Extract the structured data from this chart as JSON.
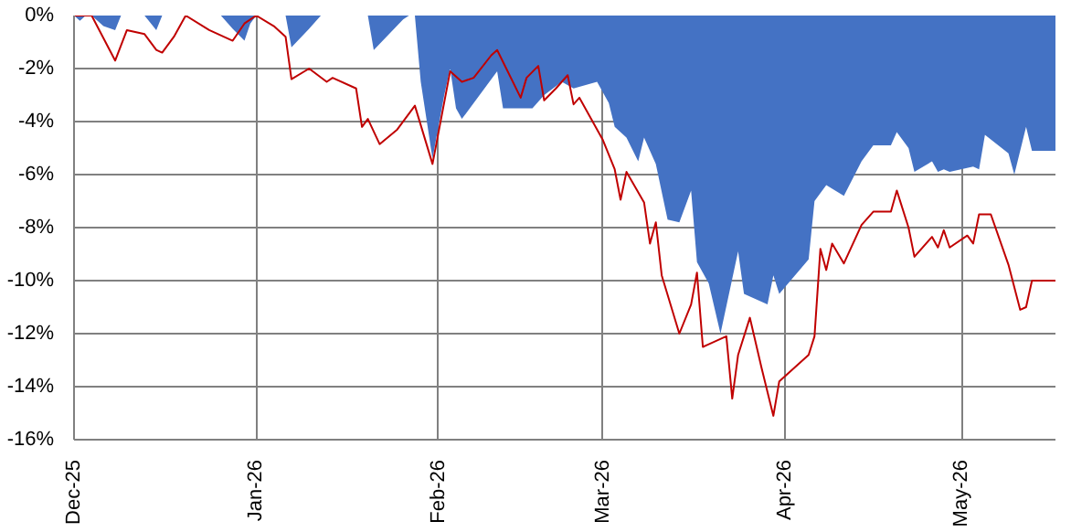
{
  "chart_data": {
    "type": "area",
    "xlim": [
      "2025-12-01",
      "2026-05-17"
    ],
    "ylim": [
      -16,
      0
    ],
    "xticks": [
      {
        "value": "2025-12-01",
        "label": "Dec-25"
      },
      {
        "value": "2026-01-01",
        "label": "Jan-26"
      },
      {
        "value": "2026-02-01",
        "label": "Feb-26"
      },
      {
        "value": "2026-03-01",
        "label": "Mar-26"
      },
      {
        "value": "2026-04-01",
        "label": "Apr-26"
      },
      {
        "value": "2026-05-01",
        "label": "May-26"
      }
    ],
    "yticks": [
      {
        "value": 0,
        "label": "0%"
      },
      {
        "value": -2,
        "label": "-2%"
      },
      {
        "value": -4,
        "label": "-4%"
      },
      {
        "value": -6,
        "label": "-6%"
      },
      {
        "value": -8,
        "label": "-8%"
      },
      {
        "value": -10,
        "label": "-10%"
      },
      {
        "value": -12,
        "label": "-12%"
      },
      {
        "value": -14,
        "label": "-14%"
      },
      {
        "value": -16,
        "label": "-16%"
      }
    ],
    "grid": true,
    "series": [
      {
        "color": "#4472c4",
        "x": [
          "2025-12-01",
          "2025-12-02",
          "2025-12-03",
          "2025-12-04",
          "2025-12-06",
          "2025-12-08",
          "2025-12-09",
          "2025-12-13",
          "2025-12-15",
          "2025-12-16",
          "2025-12-26",
          "2025-12-28",
          "2025-12-30",
          "2025-12-31",
          "2026-01-01",
          "2026-01-06",
          "2026-01-07",
          "2026-01-10",
          "2026-01-12",
          "2026-01-20",
          "2026-01-21",
          "2026-01-26",
          "2026-01-27",
          "2026-01-28",
          "2026-01-29",
          "2026-01-31",
          "2026-02-02",
          "2026-02-03",
          "2026-02-04",
          "2026-02-05",
          "2026-02-11",
          "2026-02-12",
          "2026-02-17",
          "2026-02-19",
          "2026-02-22",
          "2026-02-24",
          "2026-02-28",
          "2026-03-02",
          "2026-03-03",
          "2026-03-05",
          "2026-03-07",
          "2026-03-08",
          "2026-03-10",
          "2026-03-12",
          "2026-03-14",
          "2026-03-16",
          "2026-03-17",
          "2026-03-19",
          "2026-03-21",
          "2026-03-24",
          "2026-03-25",
          "2026-03-29",
          "2026-03-30",
          "2026-03-31",
          "2026-04-05",
          "2026-04-06",
          "2026-04-08",
          "2026-04-11",
          "2026-04-14",
          "2026-04-16",
          "2026-04-19",
          "2026-04-20",
          "2026-04-22",
          "2026-04-23",
          "2026-04-26",
          "2026-04-27",
          "2026-04-28",
          "2026-04-29",
          "2026-05-03",
          "2026-05-04",
          "2026-05-05",
          "2026-05-09",
          "2026-05-10",
          "2026-05-12",
          "2026-05-13",
          "2026-05-17"
        ],
        "values": [
          0,
          -0.2,
          0,
          0,
          -0.4,
          -0.55,
          0,
          0,
          -0.55,
          0,
          0,
          -0.5,
          -0.95,
          -0.3,
          0,
          0,
          -1.2,
          -0.5,
          0,
          0,
          -1.3,
          -0.15,
          0,
          0,
          -2.5,
          -5.4,
          -3.0,
          -2.0,
          -3.5,
          -3.9,
          -2.1,
          -3.5,
          -3.5,
          -3.0,
          -2.5,
          -2.75,
          -2.5,
          -3.3,
          -4.2,
          -4.6,
          -5.5,
          -4.6,
          -5.6,
          -7.7,
          -7.8,
          -6.6,
          -9.3,
          -10.1,
          -12.0,
          -8.9,
          -10.5,
          -10.9,
          -9.8,
          -10.5,
          -9.2,
          -7.0,
          -6.4,
          -6.8,
          -5.5,
          -4.9,
          -4.9,
          -4.4,
          -5.0,
          -5.9,
          -5.5,
          -5.9,
          -5.8,
          -5.9,
          -5.7,
          -5.8,
          -4.5,
          -5.2,
          -6.0,
          -4.2,
          -5.1,
          -5.1
        ]
      },
      {
        "type": "line",
        "color": "#c00000",
        "x": [
          "2025-12-01",
          "2025-12-04",
          "2025-12-08",
          "2025-12-10",
          "2025-12-13",
          "2025-12-15",
          "2025-12-16",
          "2025-12-18",
          "2025-12-20",
          "2025-12-24",
          "2025-12-28",
          "2025-12-30",
          "2026-01-01",
          "2026-01-04",
          "2026-01-06",
          "2026-01-07",
          "2026-01-10",
          "2026-01-13",
          "2026-01-14",
          "2026-01-18",
          "2026-01-19",
          "2026-01-20",
          "2026-01-22",
          "2026-01-25",
          "2026-01-28",
          "2026-01-31",
          "2026-02-03",
          "2026-02-05",
          "2026-02-07",
          "2026-02-10",
          "2026-02-11",
          "2026-02-15",
          "2026-02-16",
          "2026-02-18",
          "2026-02-19",
          "2026-02-21",
          "2026-02-23",
          "2026-02-24",
          "2026-02-25",
          "2026-03-01",
          "2026-03-03",
          "2026-03-04",
          "2026-03-05",
          "2026-03-08",
          "2026-03-09",
          "2026-03-10",
          "2026-03-11",
          "2026-03-14",
          "2026-03-16",
          "2026-03-17",
          "2026-03-18",
          "2026-03-19",
          "2026-03-22",
          "2026-03-23",
          "2026-03-24",
          "2026-03-26",
          "2026-03-28",
          "2026-03-30",
          "2026-03-31",
          "2026-04-05",
          "2026-04-06",
          "2026-04-07",
          "2026-04-08",
          "2026-04-09",
          "2026-04-11",
          "2026-04-14",
          "2026-04-16",
          "2026-04-19",
          "2026-04-20",
          "2026-04-22",
          "2026-04-23",
          "2026-04-26",
          "2026-04-27",
          "2026-04-28",
          "2026-04-29",
          "2026-05-02",
          "2026-05-03",
          "2026-05-04",
          "2026-05-06",
          "2026-05-09",
          "2026-05-11",
          "2026-05-12",
          "2026-05-13",
          "2026-05-17"
        ],
        "values": [
          0,
          0,
          -1.7,
          -0.55,
          -0.7,
          -1.3,
          -1.4,
          -0.8,
          0,
          -0.55,
          -0.95,
          -0.3,
          0,
          -0.4,
          -0.8,
          -2.4,
          -2.0,
          -2.5,
          -2.35,
          -2.75,
          -4.2,
          -3.9,
          -4.85,
          -4.3,
          -3.4,
          -5.6,
          -2.1,
          -2.5,
          -2.35,
          -1.5,
          -1.3,
          -3.1,
          -2.35,
          -1.9,
          -3.2,
          -2.75,
          -2.25,
          -3.35,
          -3.1,
          -4.7,
          -5.8,
          -6.95,
          -5.9,
          -7.05,
          -8.6,
          -7.8,
          -9.8,
          -12.0,
          -10.9,
          -9.7,
          -12.5,
          -12.4,
          -12.1,
          -14.45,
          -12.8,
          -11.4,
          -13.3,
          -15.1,
          -13.8,
          -12.8,
          -12.1,
          -8.8,
          -9.6,
          -8.6,
          -9.35,
          -7.9,
          -7.4,
          -7.4,
          -6.6,
          -8.0,
          -9.1,
          -8.35,
          -8.75,
          -8.1,
          -8.75,
          -8.3,
          -8.6,
          -7.5,
          -7.5,
          -9.4,
          -11.1,
          -11.0,
          -10.0,
          -10.0
        ]
      }
    ]
  }
}
